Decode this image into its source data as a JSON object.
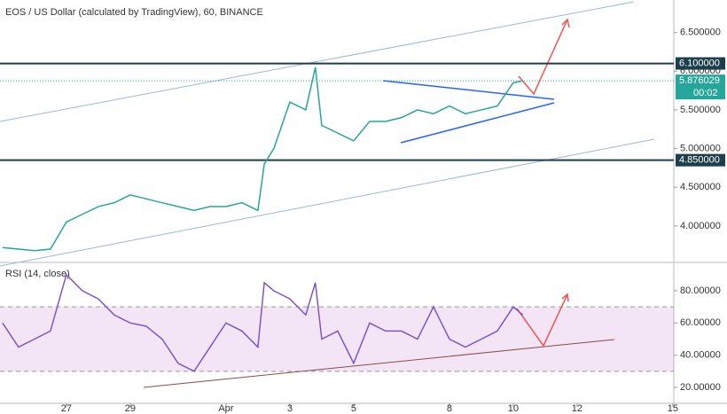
{
  "chart_data": [
    {
      "type": "line",
      "title": "EOS / US Dollar (calculated by TradingView), 60, BINANCE",
      "x": [
        -2,
        -1.5,
        -1,
        -0.5,
        0,
        0.5,
        1,
        1.5,
        2,
        2.5,
        3,
        3.5,
        4,
        4.5,
        5,
        5.5,
        6,
        6.2,
        6.5,
        7,
        7.5,
        7.8,
        8,
        8.5,
        9,
        9.5,
        10,
        10.5,
        11,
        11.5,
        12,
        12.5,
        13,
        13.5,
        14,
        14.3
      ],
      "series": [
        {
          "color": "#26a69a",
          "values": [
            3.72,
            3.7,
            3.68,
            3.7,
            4.05,
            4.15,
            4.25,
            4.3,
            4.4,
            4.35,
            4.3,
            4.25,
            4.2,
            4.25,
            4.25,
            4.3,
            4.2,
            4.8,
            5.0,
            5.6,
            5.5,
            6.05,
            5.3,
            5.2,
            5.1,
            5.35,
            5.35,
            5.4,
            5.5,
            5.45,
            5.55,
            5.45,
            5.5,
            5.55,
            5.85,
            5.876
          ]
        }
      ],
      "xlim": [
        -2.08,
        19.03
      ],
      "ylim": [
        3.54,
        6.92
      ],
      "yticks": [
        {
          "value": 4.0,
          "label": "4.000000"
        },
        {
          "value": 4.5,
          "label": "4.500000"
        },
        {
          "value": 5.0,
          "label": "5.000000"
        },
        {
          "value": 5.5,
          "label": "5.500000"
        },
        {
          "value": 6.0,
          "label": "6.000000"
        },
        {
          "value": 6.5,
          "label": "6.500000"
        }
      ],
      "hlines": [
        {
          "value": 6.1,
          "label": "6.100000"
        },
        {
          "value": 4.85,
          "label": "4.850000"
        }
      ],
      "last": {
        "value": 5.876029,
        "label": "5.876029"
      },
      "countdown": "00:02"
    },
    {
      "type": "line",
      "title": "RSI (14, close)",
      "x": [
        -2,
        -1.5,
        -1,
        -0.5,
        0,
        0.5,
        1,
        1.5,
        2,
        2.5,
        3,
        3.5,
        4,
        4.5,
        5,
        5.5,
        6,
        6.2,
        6.5,
        7,
        7.5,
        7.8,
        8,
        8.5,
        9,
        9.5,
        10,
        10.5,
        11,
        11.5,
        12,
        12.5,
        13,
        13.5,
        14,
        14.3
      ],
      "series": [
        {
          "color": "#7e57c2",
          "values": [
            60,
            45,
            50,
            55,
            90,
            80,
            75,
            65,
            60,
            58,
            50,
            35,
            30,
            45,
            60,
            55,
            45,
            85,
            80,
            75,
            65,
            85,
            50,
            55,
            35,
            60,
            55,
            55,
            50,
            70,
            50,
            45,
            50,
            55,
            70,
            65
          ]
        }
      ],
      "xlim": [
        -2.08,
        19.03
      ],
      "ylim": [
        10.1,
        96.5
      ],
      "yticks": [
        {
          "value": 20,
          "label": "20.00000"
        },
        {
          "value": 40,
          "label": "40.00000"
        },
        {
          "value": 60,
          "label": "60.00000"
        },
        {
          "value": 80,
          "label": "80.00000"
        }
      ],
      "band": [
        30,
        70
      ],
      "xticks": [
        {
          "value": 0,
          "label": "27"
        },
        {
          "value": 2,
          "label": "29"
        },
        {
          "value": 5,
          "label": "Apr"
        },
        {
          "value": 7,
          "label": "3"
        },
        {
          "value": 9,
          "label": "5"
        },
        {
          "value": 12,
          "label": "8"
        },
        {
          "value": 14,
          "label": "10"
        },
        {
          "value": 16,
          "label": "12"
        },
        {
          "value": 19,
          "label": "15"
        }
      ]
    }
  ]
}
